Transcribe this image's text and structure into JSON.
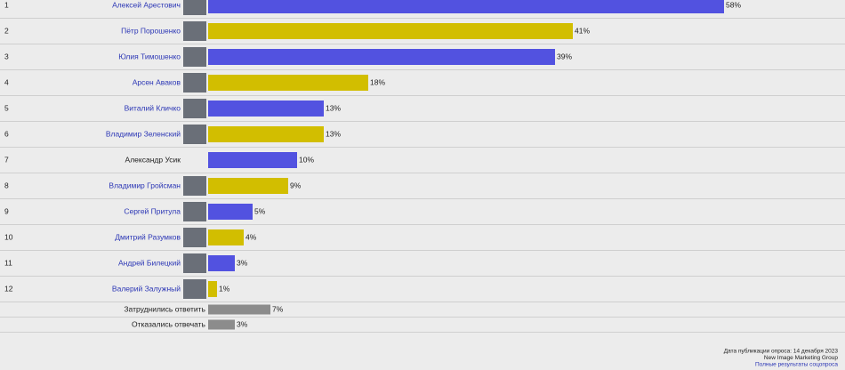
{
  "chart_data": {
    "type": "bar",
    "row_numbers": [
      "1",
      "2",
      "3",
      "4",
      "5",
      "6",
      "7",
      "8",
      "9",
      "10",
      "11",
      "12",
      null,
      null
    ],
    "categories": [
      "Алексей Арестович",
      "Пётр Порошенко",
      "Юлия Тимошенко",
      "Арсен Аваков",
      "Виталий Кличко",
      "Владимир Зеленский",
      "Александр Усик",
      "Владимир Гройсман",
      "Сергей Притула",
      "Дмитрий Разумков",
      "Андрей Билецкий",
      "Валерий Залужный",
      "Затруднились ответить",
      "Отказались отвечать"
    ],
    "values": [
      58,
      41,
      39,
      18,
      13,
      13,
      10,
      9,
      5,
      4,
      3,
      1,
      7,
      3
    ],
    "value_labels": [
      "58%",
      "41%",
      "39%",
      "18%",
      "13%",
      "13%",
      "10%",
      "9%",
      "5%",
      "4%",
      "3%",
      "1%",
      "7%",
      "3%"
    ],
    "colors": [
      "#5252e0",
      "#d2be00",
      "#5252e0",
      "#d2be00",
      "#5252e0",
      "#d2be00",
      "#5252e0",
      "#d2be00",
      "#5252e0",
      "#d2be00",
      "#5252e0",
      "#d2be00",
      "#8c8c8c",
      "#8c8c8c"
    ],
    "label_colors": [
      "#2b36b5",
      "#2b36b5",
      "#2b36b5",
      "#2b36b5",
      "#2b36b5",
      "#2b36b5",
      "#222222",
      "#2b36b5",
      "#2b36b5",
      "#2b36b5",
      "#2b36b5",
      "#2b36b5",
      "#222222",
      "#222222"
    ],
    "footer": {
      "date": "Дата публикации опроса: 14 декабря 2023",
      "source": "New Image Marketing Group",
      "link": "Полные результаты соцопроса"
    }
  }
}
